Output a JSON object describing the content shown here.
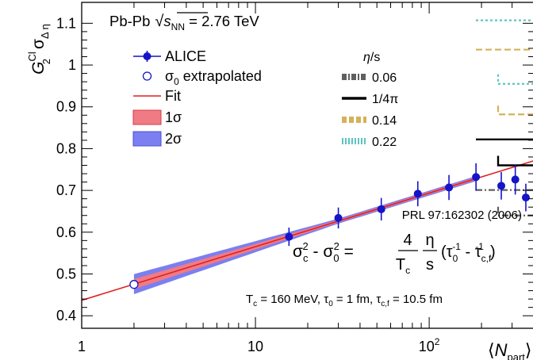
{
  "chart_data": {
    "type": "scatter",
    "xscale": "log",
    "xlim": [
      1,
      400
    ],
    "ylim": [
      0.37,
      1.15
    ],
    "xticks": [
      {
        "v": 1,
        "label": "1",
        "base": "",
        "exp": ""
      },
      {
        "v": 10,
        "label": "10",
        "base": "",
        "exp": ""
      },
      {
        "v": 100,
        "label": "",
        "base": "10",
        "exp": "2"
      }
    ],
    "yticks": [
      0.4,
      0.5,
      0.6,
      0.7,
      0.8,
      0.9,
      1.0,
      1.1
    ],
    "ytick_labels": [
      "0.4",
      "0.5",
      "0.6",
      "0.7",
      "0.8",
      "0.9",
      "1",
      "1.1"
    ],
    "ylabel": {
      "G": "G",
      "sup": "Cl",
      "sub": "2",
      "sigma": "σ",
      "sigsub": "Δ η"
    },
    "xlabel": {
      "open": "⟨",
      "N": "N",
      "sub": "part",
      "close": "⟩"
    },
    "header": {
      "system": "Pb-Pb",
      "root": "√",
      "s": "s",
      "ssub": "NN",
      "rest": " = 2.76 TeV"
    },
    "reference": "PRL 97:162302 (2006)",
    "formula": {
      "sc": "σ",
      "csub": "c",
      "sq": "2",
      "minus": " - ",
      "s0": "σ",
      "zsub": "0",
      "eq": " = ",
      "num4": "4",
      "Tc": "T",
      "Tcsub": "c",
      "eta": "η",
      "s": "s",
      "lp": "(τ",
      "t0sub": "0",
      "inv": "-1",
      "mid": " - τ",
      "tcfsub": "c,f",
      "rp": ")"
    },
    "params": {
      "p1": "T",
      "p1sub": "c",
      "p1val": " = 160 MeV, τ",
      "p2sub": "0",
      "p2val": " = 1 fm, τ",
      "p3sub": "c,f",
      "p3val": " = 10.5 fm"
    },
    "legend": {
      "alice": "ALICE",
      "sigma0_a": "σ",
      "sigma0_sub": "0",
      "sigma0_b": " extrapolated",
      "fit": "Fit",
      "band1": "1σ",
      "band2": "2σ"
    },
    "legend_right": {
      "title_eta": "η",
      "title_rest": "/s",
      "entries": [
        {
          "label": "0.06",
          "color": "#606060",
          "style": "dashdot"
        },
        {
          "label": "1/4π",
          "color": "#000000",
          "style": "solid"
        },
        {
          "label": "0.14",
          "color": "#d4b25a",
          "style": "dashed"
        },
        {
          "label": "0.22",
          "color": "#5ec4c2",
          "style": "dotted"
        }
      ]
    },
    "series": [
      {
        "name": "ALICE",
        "color": "#1414c8",
        "points": [
          {
            "x": 15.6,
            "y": 0.589,
            "err": 0.022
          },
          {
            "x": 30.0,
            "y": 0.634,
            "err": 0.025
          },
          {
            "x": 53.0,
            "y": 0.655,
            "err": 0.027
          },
          {
            "x": 86.0,
            "y": 0.692,
            "err": 0.03
          },
          {
            "x": 130.0,
            "y": 0.707,
            "err": 0.03
          },
          {
            "x": 186.0,
            "y": 0.732,
            "err": 0.033
          },
          {
            "x": 260.0,
            "y": 0.711,
            "err": 0.033
          },
          {
            "x": 313.0,
            "y": 0.726,
            "err": 0.036
          },
          {
            "x": 360.0,
            "y": 0.683,
            "err": 0.033
          }
        ]
      },
      {
        "name": "σ0 extrapolated",
        "color": "#1414c8",
        "points": [
          {
            "x": 2.0,
            "y": 0.475
          }
        ]
      }
    ],
    "fit": {
      "color": "#e02020",
      "a": 0.437,
      "b": 0.1283,
      "x0": 1,
      "x1": 400
    },
    "bands": [
      {
        "label": "2σ",
        "color": "#7b7ff0",
        "x0": 2.0,
        "x1": 186,
        "y0_half": 0.024,
        "x_tight": 30,
        "y1_half": 0.006
      },
      {
        "label": "1σ",
        "color": "#f07b84",
        "x0": 2.0,
        "x1": 186,
        "y0_half": 0.012,
        "x_tight": 30,
        "y1_half": 0.003
      }
    ],
    "model_boxes": [
      {
        "color": "#5ec4c2",
        "style": "dotted",
        "y": 1.107,
        "y2": 0.955
      },
      {
        "color": "#d4b25a",
        "style": "dashed",
        "y": 1.037,
        "y2": 0.882
      },
      {
        "color": "#000000",
        "style": "solid",
        "y": 0.822,
        "y2": 0.76
      },
      {
        "color": "#606060",
        "style": "dashdot",
        "y": 0.701,
        "y2": 0.64
      }
    ]
  }
}
